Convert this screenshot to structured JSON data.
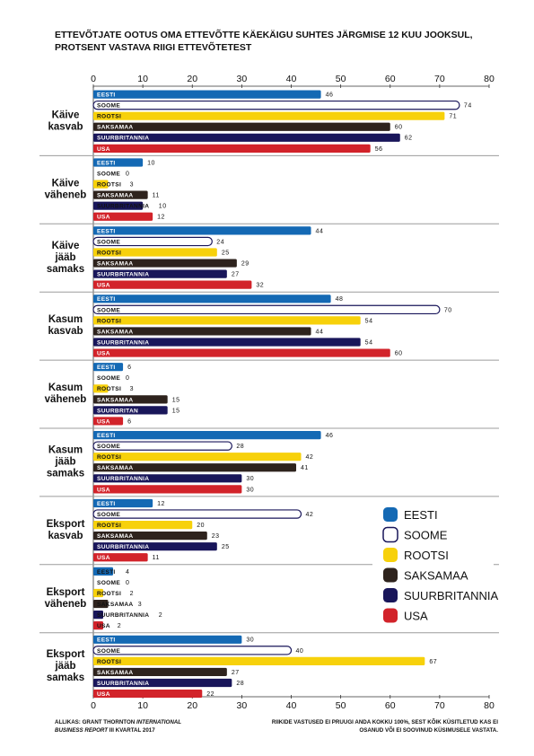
{
  "title": "ETTEVÕTJATE OOTUS OMA ETTEVÕTTE KÄEKÄIGU SUHTES JÄRGMISE 12 KUU JOOKSUL, PROTSENT VASTAVA RIIGI ETTEVÕTETEST",
  "footer": {
    "source_prefix": "ALLIKAS: GRANT THORNTON ",
    "source_italic_1": "INTERNATIONAL",
    "source_italic_2": "BUSINESS REPORT",
    "source_suffix": " III KVARTAL 2017",
    "note": "RIIKIDE VASTUSED EI PRUUGI ANDA KOKKU 100%, SEST KÕIK KÜSITLETUD KAS EI OSANUD VÕI EI SOOVINUD KÜSIMUSELE VASTATA."
  },
  "colors": {
    "EESTI": "#1469b4",
    "SOOME": "#ffffff",
    "ROOTSI": "#f7d10b",
    "SAKSAMAA": "#2e231d",
    "SUURBRITANNIA": "#19165a",
    "USA": "#d2232a",
    "soome_outline": "#19165a",
    "separator": "#9c9c9c",
    "axis": "#333333"
  },
  "chart_data": {
    "type": "bar",
    "orientation": "horizontal",
    "xlim": [
      0,
      80
    ],
    "ticks": [
      "0",
      "10",
      "20",
      "30",
      "40",
      "50",
      "60",
      "70",
      "80"
    ],
    "series_names": [
      "EESTI",
      "SOOME",
      "ROOTSI",
      "SAKSAMAA",
      "SUURBRITANNIA",
      "USA"
    ],
    "groups": [
      {
        "label": [
          "Käive",
          "kasvab"
        ],
        "bar_labels": [
          "EESTI",
          "SOOME",
          "ROOTSI",
          "SAKSAMAA",
          "SUURBRITANNIA",
          "USA"
        ],
        "values": [
          46,
          74,
          71,
          60,
          62,
          56
        ]
      },
      {
        "label": [
          "Käive",
          "väheneb"
        ],
        "bar_labels": [
          "EESTI",
          "SOOME",
          "ROOTSI",
          "SAKSAMAA",
          "SUURBRITANNIA",
          "USA"
        ],
        "values": [
          10,
          0,
          3,
          11,
          10,
          12
        ]
      },
      {
        "label": [
          "Käive",
          "jääb",
          "samaks"
        ],
        "bar_labels": [
          "EESTI",
          "SOOME",
          "ROOTSI",
          "SAKSAMAA",
          "SUURBRITANNIA",
          "USA"
        ],
        "values": [
          44,
          24,
          25,
          29,
          27,
          32
        ]
      },
      {
        "label": [
          "Kasum",
          "kasvab"
        ],
        "bar_labels": [
          "EESTI",
          "SOOME",
          "ROOTSI",
          "SAKSAMAA",
          "SUURBRITANNIA",
          "USA"
        ],
        "values": [
          48,
          70,
          54,
          44,
          54,
          60
        ]
      },
      {
        "label": [
          "Kasum",
          "väheneb"
        ],
        "bar_labels": [
          "EESTI",
          "SOOME",
          "ROOTSI",
          "SAKSAMAA",
          "SUURBRITAN",
          "USA"
        ],
        "values": [
          6,
          0,
          3,
          15,
          15,
          6
        ]
      },
      {
        "label": [
          "Kasum",
          "jääb",
          "samaks"
        ],
        "bar_labels": [
          "EESTI",
          "SOOME",
          "ROOTSI",
          "SAKSAMAA",
          "SUURBRITANNIA",
          "USA"
        ],
        "values": [
          46,
          28,
          42,
          41,
          30,
          30
        ]
      },
      {
        "label": [
          "Eksport",
          "kasvab"
        ],
        "bar_labels": [
          "EESTI",
          "SOOME",
          "ROOTSI",
          "SAKSAMAA",
          "SUURBRITANNIA",
          "USA"
        ],
        "values": [
          12,
          42,
          20,
          23,
          25,
          11
        ]
      },
      {
        "label": [
          "Eksport",
          "väheneb"
        ],
        "bar_labels": [
          "EESTI",
          "SOOME",
          "ROOTSI",
          "SAKSAMAA",
          "SUURBRITANNIA",
          "USA"
        ],
        "values": [
          4,
          0,
          2,
          3,
          2,
          2
        ]
      },
      {
        "label": [
          "Eksport",
          "jääb",
          "samaks"
        ],
        "bar_labels": [
          "EESTI",
          "SOOME",
          "ROOTSI",
          "SAKSAMAA",
          "SUURBRITANNIA",
          "USA"
        ],
        "values": [
          30,
          40,
          67,
          27,
          28,
          22
        ]
      }
    ],
    "legend": {
      "position": "right-lower",
      "entries": [
        "EESTI",
        "SOOME",
        "ROOTSI",
        "SAKSAMAA",
        "SUURBRITANNIA",
        "USA"
      ]
    }
  }
}
